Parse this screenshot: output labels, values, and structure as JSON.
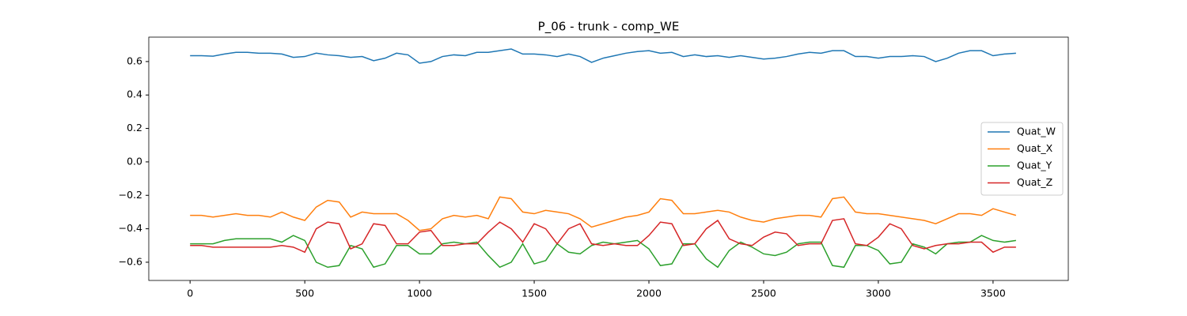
{
  "chart_data": {
    "type": "line",
    "title": "P_06 - trunk - comp_WE",
    "x": [
      0,
      50,
      100,
      150,
      200,
      250,
      300,
      350,
      400,
      450,
      500,
      550,
      600,
      650,
      700,
      750,
      800,
      850,
      900,
      950,
      1000,
      1050,
      1100,
      1150,
      1200,
      1250,
      1300,
      1350,
      1400,
      1450,
      1500,
      1550,
      1600,
      1650,
      1700,
      1750,
      1800,
      1850,
      1900,
      1950,
      2000,
      2050,
      2100,
      2150,
      2200,
      2250,
      2300,
      2350,
      2400,
      2450,
      2500,
      2550,
      2600,
      2650,
      2700,
      2750,
      2800,
      2850,
      2900,
      2950,
      3000,
      3050,
      3100,
      3150,
      3200,
      3250,
      3300,
      3350,
      3400,
      3450,
      3500,
      3550,
      3600
    ],
    "series": [
      {
        "name": "Quat_W",
        "color": "#1f77b4",
        "values": [
          0.635,
          0.635,
          0.632,
          0.645,
          0.655,
          0.655,
          0.65,
          0.65,
          0.645,
          0.625,
          0.63,
          0.65,
          0.64,
          0.635,
          0.625,
          0.63,
          0.605,
          0.62,
          0.65,
          0.64,
          0.59,
          0.6,
          0.63,
          0.64,
          0.635,
          0.655,
          0.655,
          0.665,
          0.675,
          0.645,
          0.645,
          0.64,
          0.63,
          0.645,
          0.63,
          0.595,
          0.62,
          0.635,
          0.65,
          0.66,
          0.665,
          0.65,
          0.655,
          0.63,
          0.64,
          0.63,
          0.635,
          0.625,
          0.635,
          0.625,
          0.615,
          0.62,
          0.63,
          0.645,
          0.655,
          0.65,
          0.665,
          0.665,
          0.63,
          0.63,
          0.62,
          0.63,
          0.63,
          0.635,
          0.63,
          0.6,
          0.62,
          0.65,
          0.665,
          0.665,
          0.635,
          0.645,
          0.65
        ]
      },
      {
        "name": "Quat_X",
        "color": "#ff7f0e",
        "values": [
          -0.32,
          -0.32,
          -0.33,
          -0.32,
          -0.31,
          -0.32,
          -0.32,
          -0.33,
          -0.3,
          -0.33,
          -0.35,
          -0.27,
          -0.23,
          -0.24,
          -0.33,
          -0.3,
          -0.31,
          -0.31,
          -0.31,
          -0.35,
          -0.41,
          -0.4,
          -0.34,
          -0.32,
          -0.33,
          -0.32,
          -0.34,
          -0.21,
          -0.22,
          -0.3,
          -0.31,
          -0.29,
          -0.3,
          -0.31,
          -0.34,
          -0.39,
          -0.37,
          -0.35,
          -0.33,
          -0.32,
          -0.3,
          -0.22,
          -0.23,
          -0.31,
          -0.31,
          -0.3,
          -0.29,
          -0.3,
          -0.33,
          -0.35,
          -0.36,
          -0.34,
          -0.33,
          -0.32,
          -0.32,
          -0.33,
          -0.22,
          -0.21,
          -0.3,
          -0.31,
          -0.31,
          -0.32,
          -0.33,
          -0.34,
          -0.35,
          -0.37,
          -0.34,
          -0.31,
          -0.31,
          -0.32,
          -0.28,
          -0.3,
          -0.32
        ]
      },
      {
        "name": "Quat_Y",
        "color": "#2ca02c",
        "values": [
          -0.49,
          -0.49,
          -0.49,
          -0.47,
          -0.46,
          -0.46,
          -0.46,
          -0.46,
          -0.48,
          -0.44,
          -0.47,
          -0.6,
          -0.63,
          -0.62,
          -0.5,
          -0.52,
          -0.63,
          -0.61,
          -0.5,
          -0.5,
          -0.55,
          -0.55,
          -0.49,
          -0.48,
          -0.49,
          -0.48,
          -0.56,
          -0.63,
          -0.6,
          -0.49,
          -0.61,
          -0.59,
          -0.49,
          -0.54,
          -0.55,
          -0.5,
          -0.48,
          -0.49,
          -0.48,
          -0.47,
          -0.52,
          -0.62,
          -0.61,
          -0.49,
          -0.49,
          -0.58,
          -0.63,
          -0.53,
          -0.48,
          -0.51,
          -0.55,
          -0.56,
          -0.54,
          -0.49,
          -0.48,
          -0.48,
          -0.62,
          -0.63,
          -0.5,
          -0.5,
          -0.53,
          -0.61,
          -0.6,
          -0.49,
          -0.51,
          -0.55,
          -0.49,
          -0.48,
          -0.48,
          -0.44,
          -0.47,
          -0.48,
          -0.47
        ]
      },
      {
        "name": "Quat_Z",
        "color": "#d62728",
        "values": [
          -0.5,
          -0.5,
          -0.51,
          -0.51,
          -0.51,
          -0.51,
          -0.51,
          -0.51,
          -0.5,
          -0.51,
          -0.54,
          -0.4,
          -0.36,
          -0.37,
          -0.52,
          -0.49,
          -0.37,
          -0.38,
          -0.49,
          -0.49,
          -0.42,
          -0.41,
          -0.5,
          -0.5,
          -0.49,
          -0.49,
          -0.42,
          -0.36,
          -0.4,
          -0.48,
          -0.37,
          -0.4,
          -0.49,
          -0.4,
          -0.37,
          -0.49,
          -0.5,
          -0.49,
          -0.5,
          -0.5,
          -0.44,
          -0.36,
          -0.37,
          -0.5,
          -0.49,
          -0.4,
          -0.35,
          -0.46,
          -0.49,
          -0.5,
          -0.45,
          -0.42,
          -0.43,
          -0.5,
          -0.49,
          -0.49,
          -0.35,
          -0.34,
          -0.49,
          -0.5,
          -0.45,
          -0.37,
          -0.4,
          -0.5,
          -0.52,
          -0.5,
          -0.49,
          -0.49,
          -0.48,
          -0.48,
          -0.54,
          -0.51,
          -0.51
        ]
      }
    ],
    "xlim": [
      -180,
      3828
    ],
    "ylim": [
      -0.709,
      0.746
    ],
    "xticks": [
      0,
      500,
      1000,
      1500,
      2000,
      2500,
      3000,
      3500
    ],
    "yticks": [
      {
        "value": -0.6,
        "label": "−0.6"
      },
      {
        "value": -0.4,
        "label": "−0.4"
      },
      {
        "value": -0.2,
        "label": "−0.2"
      },
      {
        "value": 0,
        "label": "0.0"
      },
      {
        "value": 0.2,
        "label": "0.2"
      },
      {
        "value": 0.4,
        "label": "0.4"
      },
      {
        "value": 0.6,
        "label": "0.6"
      }
    ],
    "legend": "center right",
    "grid": false
  }
}
